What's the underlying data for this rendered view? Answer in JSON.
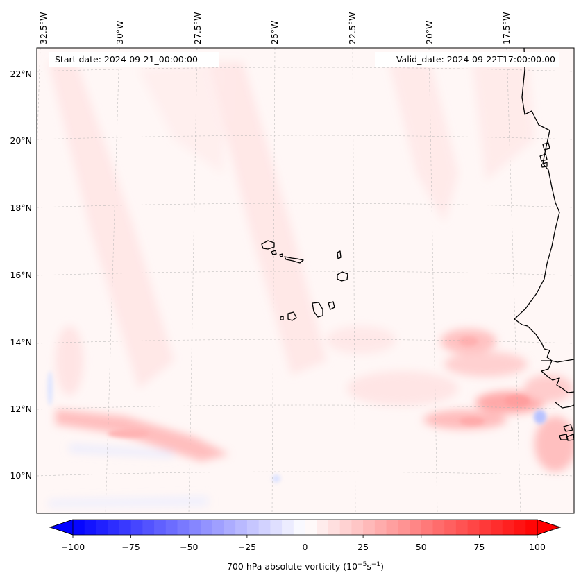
{
  "map": {
    "start_date_label": "Start date: 2024-09-21_00:00:00",
    "valid_date_label": "Valid_date: 2024-09-22T17:00:00.00",
    "lon_labels": [
      "32.5°W",
      "30°W",
      "27.5°W",
      "25°W",
      "22.5°W",
      "20°W",
      "17.5°W"
    ],
    "lat_labels": [
      "22°N",
      "20°N",
      "18°N",
      "16°N",
      "14°N",
      "12°N",
      "10°N"
    ],
    "features": [
      "Cape Verde islands",
      "West African coastline"
    ],
    "field_colors": {
      "positive": "#ff0000",
      "negative": "#0000ff",
      "neutral": "#ffffff"
    }
  },
  "colorbar": {
    "ticks": [
      "−100",
      "−75",
      "−50",
      "−25",
      "0",
      "25",
      "50",
      "75",
      "100"
    ],
    "label_main": "700 hPa absolute vorticity (10",
    "label_exp1": "−5",
    "label_mid": "s",
    "label_exp2": "−1",
    "label_end": ")",
    "min_color": "#0000ff",
    "max_color": "#ff0000"
  }
}
